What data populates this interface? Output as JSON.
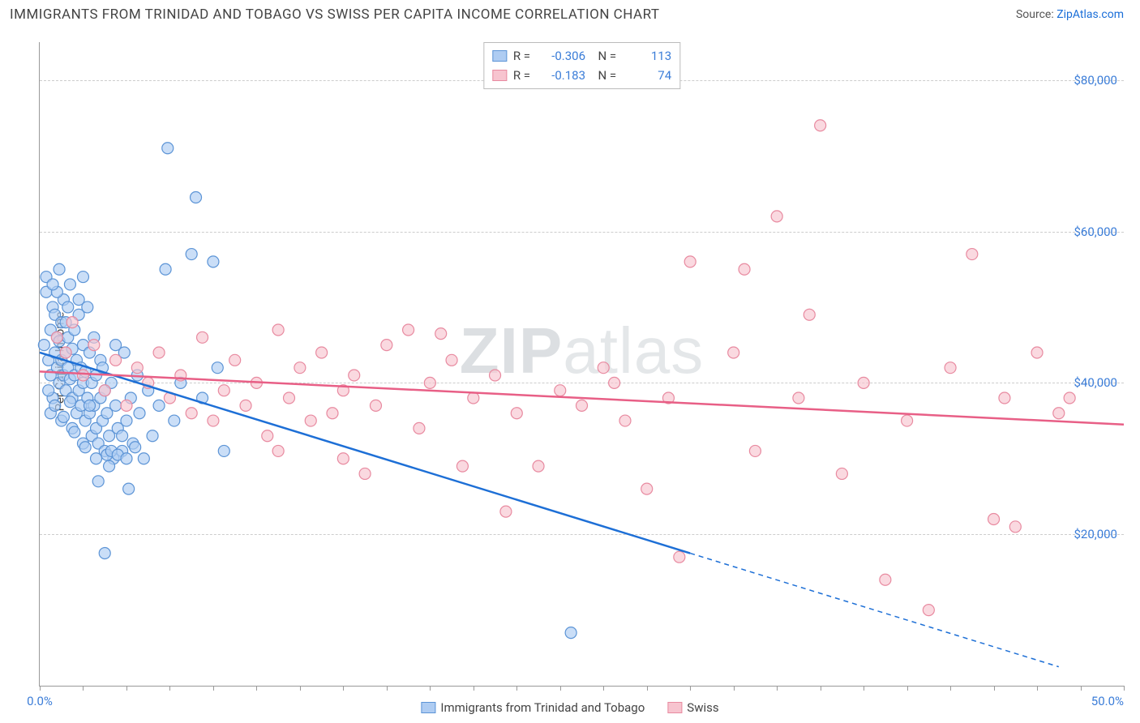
{
  "header": {
    "title": "IMMIGRANTS FROM TRINIDAD AND TOBAGO VS SWISS PER CAPITA INCOME CORRELATION CHART",
    "source_prefix": "Source: ",
    "source_link": "ZipAtlas.com"
  },
  "chart": {
    "type": "scatter",
    "ylabel": "Per Capita Income",
    "background_color": "#ffffff",
    "grid_color": "#cccccc",
    "axis_color": "#999999",
    "tick_label_color": "#3b7dd8",
    "xlim": [
      0,
      50
    ],
    "ylim": [
      0,
      85000
    ],
    "x_ticks_minor_step": 2,
    "x_tick_labels": [
      {
        "pos": 0,
        "text": "0.0%"
      },
      {
        "pos": 50,
        "text": "50.0%"
      }
    ],
    "y_gridlines": [
      20000,
      40000,
      60000,
      80000
    ],
    "y_tick_labels": [
      {
        "pos": 20000,
        "text": "$20,000"
      },
      {
        "pos": 40000,
        "text": "$40,000"
      },
      {
        "pos": 60000,
        "text": "$60,000"
      },
      {
        "pos": 80000,
        "text": "$80,000"
      }
    ],
    "watermark": {
      "bold": "ZIP",
      "rest": "atlas"
    },
    "series": [
      {
        "key": "tt",
        "label": "Immigrants from Trinidad and Tobago",
        "fill": "#aeccf2",
        "stroke": "#5c94d6",
        "line_color": "#1d6fd6",
        "r_value": "-0.306",
        "n_value": "113",
        "trend": {
          "x1": 0,
          "y1": 44000,
          "x2": 30,
          "y2": 17500,
          "x2_dash": 47,
          "y2_dash": 2500
        },
        "points": [
          [
            0.2,
            45000
          ],
          [
            0.3,
            52000
          ],
          [
            0.4,
            43000
          ],
          [
            0.5,
            47000
          ],
          [
            0.5,
            41000
          ],
          [
            0.6,
            50000
          ],
          [
            0.6,
            38000
          ],
          [
            0.7,
            44000
          ],
          [
            0.7,
            49000
          ],
          [
            0.8,
            42000
          ],
          [
            0.8,
            46000
          ],
          [
            0.9,
            40000
          ],
          [
            0.9,
            45500
          ],
          [
            1.0,
            43000
          ],
          [
            1.0,
            48000
          ],
          [
            1.1,
            41000
          ],
          [
            1.1,
            51000
          ],
          [
            1.2,
            39000
          ],
          [
            1.2,
            44000
          ],
          [
            1.3,
            42000
          ],
          [
            1.3,
            46000
          ],
          [
            1.4,
            40500
          ],
          [
            1.4,
            53000
          ],
          [
            1.5,
            38000
          ],
          [
            1.5,
            44500
          ],
          [
            1.6,
            41000
          ],
          [
            1.6,
            47000
          ],
          [
            1.7,
            36000
          ],
          [
            1.7,
            43000
          ],
          [
            1.8,
            39000
          ],
          [
            1.8,
            49000
          ],
          [
            1.9,
            37000
          ],
          [
            1.9,
            42000
          ],
          [
            2.0,
            40000
          ],
          [
            2.0,
            45000
          ],
          [
            2.1,
            35000
          ],
          [
            2.1,
            41500
          ],
          [
            2.2,
            38000
          ],
          [
            2.2,
            50000
          ],
          [
            2.3,
            36000
          ],
          [
            2.3,
            44000
          ],
          [
            2.4,
            33000
          ],
          [
            2.4,
            40000
          ],
          [
            2.5,
            37000
          ],
          [
            2.5,
            46000
          ],
          [
            2.6,
            34000
          ],
          [
            2.6,
            41000
          ],
          [
            2.7,
            32000
          ],
          [
            2.8,
            38000
          ],
          [
            2.8,
            43000
          ],
          [
            2.9,
            35000
          ],
          [
            3.0,
            31000
          ],
          [
            3.0,
            39000
          ],
          [
            3.1,
            36000
          ],
          [
            3.2,
            33000
          ],
          [
            3.3,
            40000
          ],
          [
            3.4,
            30000
          ],
          [
            3.5,
            37000
          ],
          [
            3.6,
            34000
          ],
          [
            3.8,
            31000
          ],
          [
            3.9,
            44000
          ],
          [
            4.0,
            35000
          ],
          [
            4.2,
            38000
          ],
          [
            4.3,
            32000
          ],
          [
            4.5,
            41000
          ],
          [
            4.6,
            36000
          ],
          [
            4.8,
            30000
          ],
          [
            5.0,
            39000
          ],
          [
            5.2,
            33000
          ],
          [
            5.5,
            37000
          ],
          [
            5.8,
            55000
          ],
          [
            5.9,
            71000
          ],
          [
            6.2,
            35000
          ],
          [
            6.5,
            40000
          ],
          [
            7.0,
            57000
          ],
          [
            7.2,
            64500
          ],
          [
            7.5,
            38000
          ],
          [
            8.0,
            56000
          ],
          [
            8.2,
            42000
          ],
          [
            8.5,
            31000
          ],
          [
            0.3,
            54000
          ],
          [
            0.5,
            36000
          ],
          [
            0.8,
            52000
          ],
          [
            1.0,
            35000
          ],
          [
            1.2,
            48000
          ],
          [
            1.5,
            34000
          ],
          [
            1.8,
            51000
          ],
          [
            2.0,
            32000
          ],
          [
            2.3,
            37000
          ],
          [
            2.6,
            30000
          ],
          [
            2.9,
            42000
          ],
          [
            3.2,
            29000
          ],
          [
            3.5,
            45000
          ],
          [
            3.8,
            33000
          ],
          [
            3.0,
            17500
          ],
          [
            3.1,
            30500
          ],
          [
            3.3,
            31000
          ],
          [
            3.6,
            30500
          ],
          [
            4.0,
            30000
          ],
          [
            4.4,
            31500
          ],
          [
            2.7,
            27000
          ],
          [
            4.1,
            26000
          ],
          [
            2.0,
            54000
          ],
          [
            1.3,
            50000
          ],
          [
            0.6,
            53000
          ],
          [
            0.4,
            39000
          ],
          [
            0.7,
            37000
          ],
          [
            1.1,
            35500
          ],
          [
            1.6,
            33500
          ],
          [
            2.1,
            31500
          ],
          [
            24.5,
            7000
          ],
          [
            0.9,
            55000
          ],
          [
            1.4,
            37500
          ]
        ]
      },
      {
        "key": "swiss",
        "label": "Swiss",
        "fill": "#f7c4cf",
        "stroke": "#e88aa0",
        "line_color": "#e85f86",
        "r_value": "-0.183",
        "n_value": "74",
        "trend": {
          "x1": 0,
          "y1": 41500,
          "x2": 50,
          "y2": 34500
        },
        "points": [
          [
            0.8,
            46000
          ],
          [
            1.2,
            44000
          ],
          [
            1.5,
            48000
          ],
          [
            2.0,
            41000
          ],
          [
            2.5,
            45000
          ],
          [
            3.0,
            39000
          ],
          [
            3.5,
            43000
          ],
          [
            4.0,
            37000
          ],
          [
            4.5,
            42000
          ],
          [
            5.0,
            40000
          ],
          [
            5.5,
            44000
          ],
          [
            6.0,
            38000
          ],
          [
            6.5,
            41000
          ],
          [
            7.0,
            36000
          ],
          [
            7.5,
            46000
          ],
          [
            8.0,
            35000
          ],
          [
            8.5,
            39000
          ],
          [
            9.0,
            43000
          ],
          [
            9.5,
            37000
          ],
          [
            10.0,
            40000
          ],
          [
            10.5,
            33000
          ],
          [
            11.0,
            47000
          ],
          [
            11.0,
            31000
          ],
          [
            11.5,
            38000
          ],
          [
            12.0,
            42000
          ],
          [
            12.5,
            35000
          ],
          [
            13.0,
            44000
          ],
          [
            13.5,
            36000
          ],
          [
            14.0,
            39000
          ],
          [
            14.5,
            41000
          ],
          [
            15.0,
            28000
          ],
          [
            15.5,
            37000
          ],
          [
            16.0,
            45000
          ],
          [
            17.0,
            47000
          ],
          [
            17.5,
            34000
          ],
          [
            18.0,
            40000
          ],
          [
            19.0,
            43000
          ],
          [
            19.5,
            29000
          ],
          [
            20.0,
            38000
          ],
          [
            21.0,
            41000
          ],
          [
            21.5,
            23000
          ],
          [
            22.0,
            36000
          ],
          [
            23.0,
            29000
          ],
          [
            24.0,
            39000
          ],
          [
            25.0,
            37000
          ],
          [
            26.0,
            42000
          ],
          [
            27.0,
            35000
          ],
          [
            28.0,
            26000
          ],
          [
            29.0,
            38000
          ],
          [
            29.5,
            17000
          ],
          [
            30.0,
            56000
          ],
          [
            32.0,
            44000
          ],
          [
            33.0,
            31000
          ],
          [
            34.0,
            62000
          ],
          [
            35.0,
            38000
          ],
          [
            35.5,
            49000
          ],
          [
            36.0,
            74000
          ],
          [
            37.0,
            28000
          ],
          [
            38.0,
            40000
          ],
          [
            39.0,
            14000
          ],
          [
            40.0,
            35000
          ],
          [
            41.0,
            10000
          ],
          [
            42.0,
            42000
          ],
          [
            43.0,
            57000
          ],
          [
            44.0,
            22000
          ],
          [
            44.5,
            38000
          ],
          [
            45.0,
            21000
          ],
          [
            46.0,
            44000
          ],
          [
            47.0,
            36000
          ],
          [
            47.5,
            38000
          ],
          [
            32.5,
            55000
          ],
          [
            26.5,
            40000
          ],
          [
            14.0,
            30000
          ],
          [
            18.5,
            46500
          ]
        ]
      }
    ]
  }
}
